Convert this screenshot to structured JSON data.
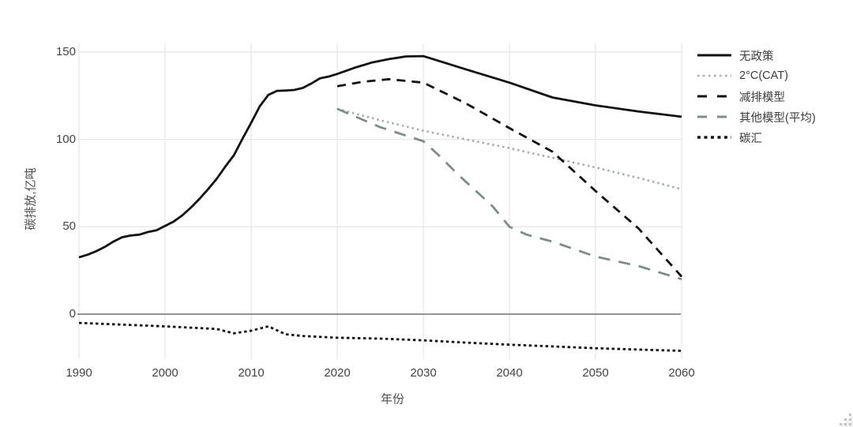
{
  "page": {
    "background": "#ffffff"
  },
  "icons": {
    "resize_grip": "dotted-corner-triangle"
  },
  "chart_data": {
    "type": "line",
    "title": "",
    "xlabel": "年份",
    "ylabel": "碳排放,亿吨",
    "x_ticks": [
      1990,
      2000,
      2010,
      2020,
      2030,
      2040,
      2050,
      2060
    ],
    "y_ticks": [
      0,
      50,
      100,
      150
    ],
    "xlim": [
      1990,
      2060
    ],
    "ylim": [
      -26,
      155
    ],
    "grid": true,
    "legend_position": "right",
    "colors": {
      "axis_text": "#444444",
      "grid": "#e9e9e9",
      "zero_line": "#565656",
      "black_series": "#111111",
      "two_degree_gray": "#9fadab",
      "other_models_gray": "#7f8c8a"
    },
    "series": [
      {
        "name": "无政策",
        "style": "solid",
        "color": "#111111",
        "width": 2.8,
        "x": [
          1990,
          1991,
          1992,
          1993,
          1994,
          1995,
          1996,
          1997,
          1998,
          1999,
          2000,
          2001,
          2002,
          2003,
          2004,
          2005,
          2006,
          2007,
          2008,
          2009,
          2010,
          2011,
          2012,
          2013,
          2014,
          2015,
          2016,
          2017,
          2018,
          2019,
          2020,
          2022,
          2024,
          2026,
          2028,
          2030,
          2035,
          2040,
          2045,
          2050,
          2055,
          2060
        ],
        "y": [
          32.5,
          34,
          36,
          38.5,
          41.5,
          44,
          45,
          45.5,
          47,
          48,
          50.5,
          53,
          56.5,
          61,
          66,
          71.5,
          77.5,
          84.5,
          91,
          100.5,
          109.5,
          119,
          125.5,
          127.8,
          128,
          128.3,
          129.5,
          132,
          135,
          136,
          137.5,
          141,
          144,
          146,
          147.5,
          147.7,
          140,
          132.5,
          124,
          119.5,
          116,
          113
        ]
      },
      {
        "name": "2°C(CAT)",
        "style": "dotted",
        "color": "#9fadab",
        "width": 2.6,
        "x": [
          2020,
          2025,
          2030,
          2035,
          2040,
          2045,
          2050,
          2055,
          2060
        ],
        "y": [
          117.5,
          111,
          105,
          100,
          95,
          89.5,
          84,
          78,
          71.5
        ]
      },
      {
        "name": "减排模型",
        "style": "dashed",
        "color": "#111111",
        "width": 2.8,
        "x": [
          2020,
          2023,
          2026,
          2030,
          2035,
          2040,
          2045,
          2050,
          2055,
          2060
        ],
        "y": [
          130.5,
          133,
          134.5,
          132.5,
          120.5,
          106.5,
          93,
          70.5,
          49,
          21.5
        ]
      },
      {
        "name": "其他模型(平均)",
        "style": "long-dashed",
        "color": "#7f8c8a",
        "width": 2.8,
        "x": [
          2020,
          2025,
          2030,
          2032,
          2034,
          2036,
          2038,
          2040,
          2042,
          2045,
          2050,
          2055,
          2060
        ],
        "y": [
          117.5,
          107,
          99,
          90,
          80,
          71,
          62,
          50,
          45.5,
          41.5,
          33,
          27.5,
          20
        ]
      },
      {
        "name": "碳汇",
        "style": "dense-dotted",
        "color": "#111111",
        "width": 2.8,
        "x": [
          1990,
          1995,
          2000,
          2004,
          2006,
          2008,
          2010,
          2012,
          2014,
          2016,
          2020,
          2025,
          2030,
          2035,
          2040,
          2045,
          2050,
          2055,
          2060
        ],
        "y": [
          -5,
          -6,
          -7,
          -8,
          -8.5,
          -11,
          -9.5,
          -7,
          -11.5,
          -12.5,
          -13.5,
          -14,
          -15,
          -16.3,
          -17.5,
          -18.5,
          -19.5,
          -20.3,
          -21
        ]
      }
    ]
  }
}
